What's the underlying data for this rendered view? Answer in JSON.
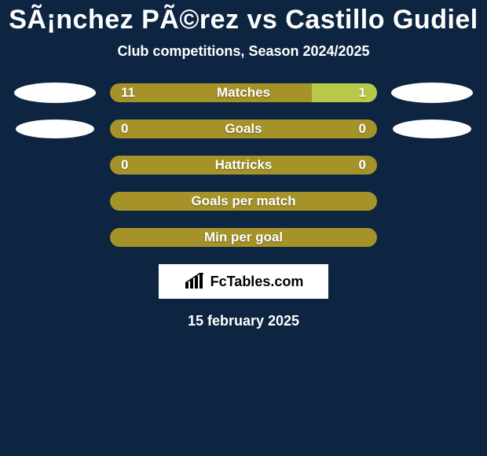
{
  "title": "SÃ¡nchez PÃ©rez vs Castillo Gudiel",
  "subtitle": "Club competitions, Season 2024/2025",
  "colors": {
    "background": "#0d2540",
    "left_seg": "#a59329",
    "right_seg_accent": "#b7c949",
    "right_seg_same": "#a59329",
    "text": "#ffffff",
    "ellipse": "#ffffff"
  },
  "ellipses": {
    "row0": {
      "left_w": 104,
      "left_h": 26,
      "right_w": 104,
      "right_h": 26
    },
    "row1": {
      "left_w": 100,
      "left_h": 24,
      "right_w": 100,
      "right_h": 24
    }
  },
  "rows": [
    {
      "label": "Matches",
      "left": "11",
      "right": "1",
      "left_pct": 78,
      "right_pct": 22,
      "right_color": "#b7c949",
      "has_ellipses": true,
      "ell_key": "row0"
    },
    {
      "label": "Goals",
      "left": "0",
      "right": "0",
      "left_pct": 50,
      "right_pct": 50,
      "right_color": "#a59329",
      "has_ellipses": true,
      "ell_key": "row1"
    },
    {
      "label": "Hattricks",
      "left": "0",
      "right": "0",
      "left_pct": 50,
      "right_pct": 50,
      "right_color": "#a59329",
      "has_ellipses": false
    },
    {
      "label": "Goals per match",
      "left": "",
      "right": "",
      "left_pct": 100,
      "right_pct": 0,
      "right_color": "#a59329",
      "has_ellipses": false
    },
    {
      "label": "Min per goal",
      "left": "",
      "right": "",
      "left_pct": 100,
      "right_pct": 0,
      "right_color": "#a59329",
      "has_ellipses": false
    }
  ],
  "logo": {
    "text": "FcTables.com"
  },
  "date": "15 february 2025",
  "typography": {
    "title_size": 34,
    "subtitle_size": 18,
    "value_size": 17
  }
}
